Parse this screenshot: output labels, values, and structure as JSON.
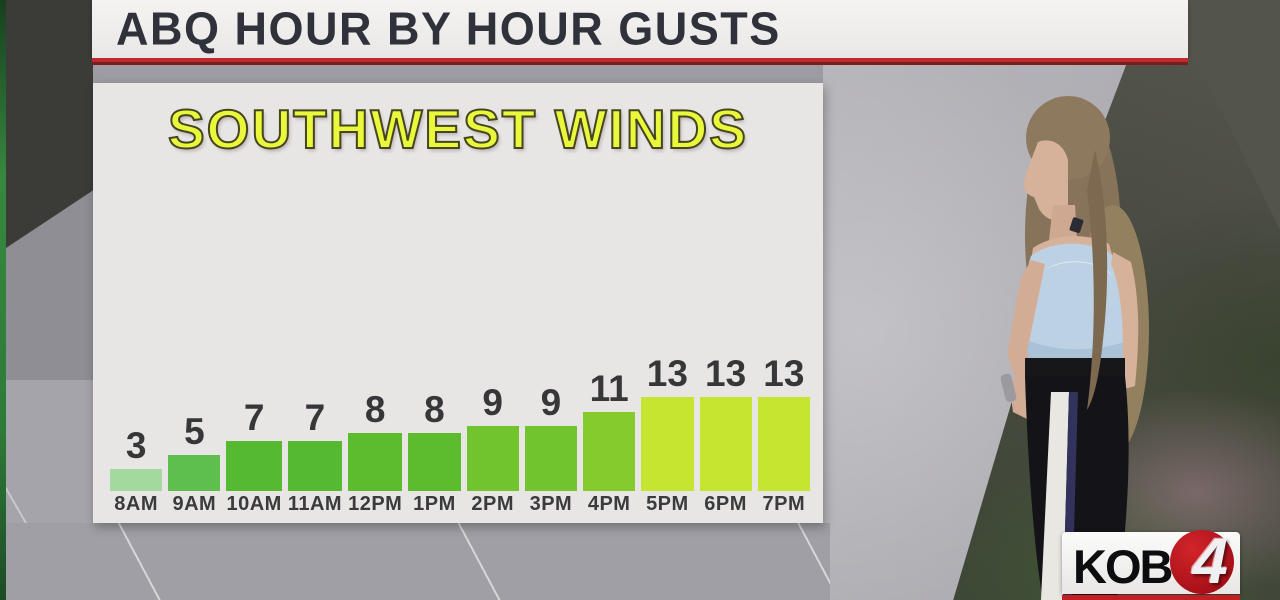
{
  "header": {
    "title": "ABQ HOUR BY HOUR GUSTS"
  },
  "chart": {
    "title": "SOUTHWEST WINDS"
  },
  "logo": {
    "station": "KOB",
    "channel": "4"
  },
  "colors": {
    "accent_red": "#bf2a2e",
    "header_text": "#2f323a",
    "panel_bg": "#e7e6e4",
    "title_yellow": "#eaf83b",
    "title_outline": "#45461f",
    "value_label": "#37373a",
    "time_label": "#3b3b3d",
    "logo_red": "#b5121b"
  },
  "chart_data": {
    "type": "bar",
    "title": "SOUTHWEST WINDS",
    "categories": [
      "8AM",
      "9AM",
      "10AM",
      "11AM",
      "12PM",
      "1PM",
      "2PM",
      "3PM",
      "4PM",
      "5PM",
      "6PM",
      "7PM"
    ],
    "values": [
      3,
      5,
      7,
      7,
      8,
      8,
      9,
      9,
      11,
      13,
      13,
      13
    ],
    "bar_colors": [
      "#a3d89f",
      "#5fbf4d",
      "#55b932",
      "#55b932",
      "#5cbc2e",
      "#5cbc2e",
      "#71c42e",
      "#71c42e",
      "#85cb2b",
      "#c6e530",
      "#c6e530",
      "#c6e530"
    ],
    "ylim": [
      0,
      14
    ],
    "value_labels_shown": true,
    "legend": "none",
    "grid": false
  }
}
